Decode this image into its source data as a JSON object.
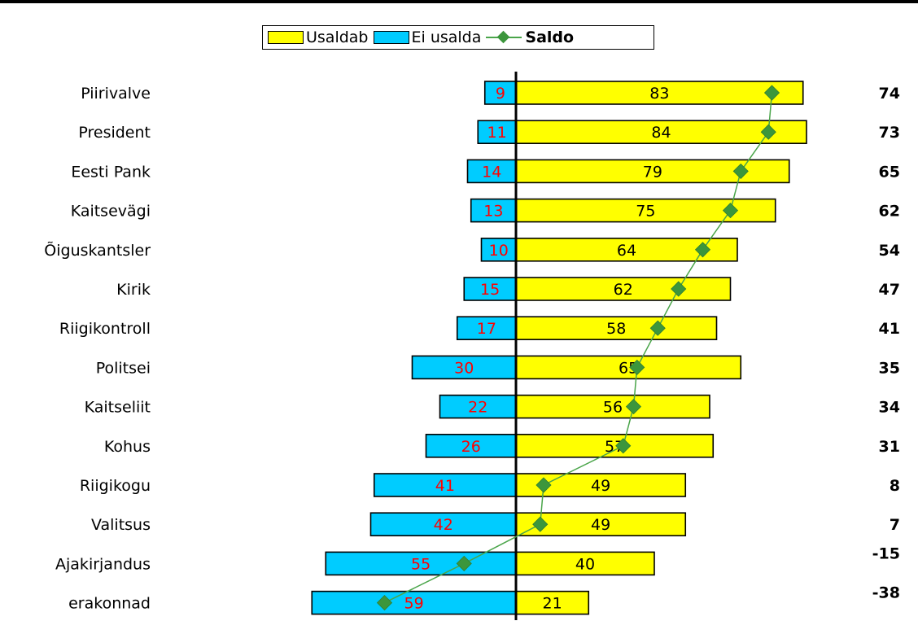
{
  "legend": {
    "trust_label": "Usaldab",
    "distrust_label": "Ei usalda",
    "saldo_label": "Saldo"
  },
  "colors": {
    "trust": "#ffff00",
    "distrust": "#00ccff",
    "saldo": "#3c963c",
    "distrust_text": "#ff0000"
  },
  "chart_data": {
    "type": "bar",
    "orientation": "horizontal-diverging",
    "title": "",
    "xlabel": "",
    "ylabel": "",
    "legend_position": "top",
    "grid": false,
    "categories": [
      "Piirivalve",
      "President",
      "Eesti Pank",
      "Kaitsevägi",
      "Õiguskantsler",
      "Kirik",
      "Riigikontroll",
      "Politsei",
      "Kaitseliit",
      "Kohus",
      "Riigikogu",
      "Valitsus",
      "Ajakirjandus",
      "erakonnad"
    ],
    "series": [
      {
        "name": "Usaldab",
        "values": [
          83,
          84,
          79,
          75,
          64,
          62,
          58,
          65,
          56,
          57,
          49,
          49,
          40,
          21
        ]
      },
      {
        "name": "Ei usalda",
        "values": [
          9,
          11,
          14,
          13,
          10,
          15,
          17,
          30,
          22,
          26,
          41,
          42,
          55,
          59
        ]
      },
      {
        "name": "Saldo",
        "values": [
          74,
          73,
          65,
          62,
          54,
          47,
          41,
          35,
          34,
          31,
          8,
          7,
          -15,
          -38
        ]
      }
    ],
    "saldo_labels": [
      "74",
      "73",
      "65",
      "62",
      "54",
      "47",
      "41",
      "35",
      "34",
      "31",
      "8",
      "7",
      "-15",
      "-38"
    ]
  }
}
